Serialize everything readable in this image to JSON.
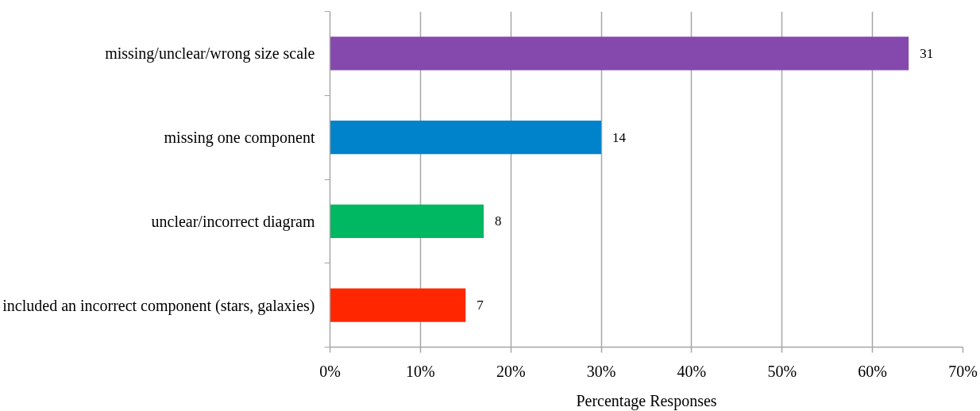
{
  "chart_data": {
    "type": "bar",
    "orientation": "horizontal",
    "categories": [
      "missing/unclear/wrong size scale",
      "missing one component",
      "unclear/incorrect diagram",
      "included an incorrect component (stars, galaxies)"
    ],
    "values": [
      64,
      30,
      17,
      15
    ],
    "colors": [
      "#8549ae",
      "#0083cb",
      "#00b862",
      "#ff2600"
    ],
    "annotations": [
      {
        "text": "31",
        "x": 64,
        "y": "missing/unclear/wrong size scale"
      },
      {
        "text": "14",
        "x": 30,
        "y": "missing one component"
      },
      {
        "text": "8",
        "x": 17,
        "y": "unclear/incorrect diagram"
      },
      {
        "text": "7",
        "x": 15,
        "y": "included an incorrect component (stars, galaxies)"
      }
    ],
    "xlim": [
      0,
      70
    ],
    "xticks": [
      {
        "value": 0,
        "label": "0%"
      },
      {
        "value": 10,
        "label": "10%"
      },
      {
        "value": 20,
        "label": "20%"
      },
      {
        "value": 30,
        "label": "30%"
      },
      {
        "value": 40,
        "label": "40%"
      },
      {
        "value": 50,
        "label": "50%"
      },
      {
        "value": 60,
        "label": "60%"
      },
      {
        "value": 70,
        "label": "70%"
      }
    ],
    "xlabel": "Percentage Responses",
    "grid": "x"
  }
}
